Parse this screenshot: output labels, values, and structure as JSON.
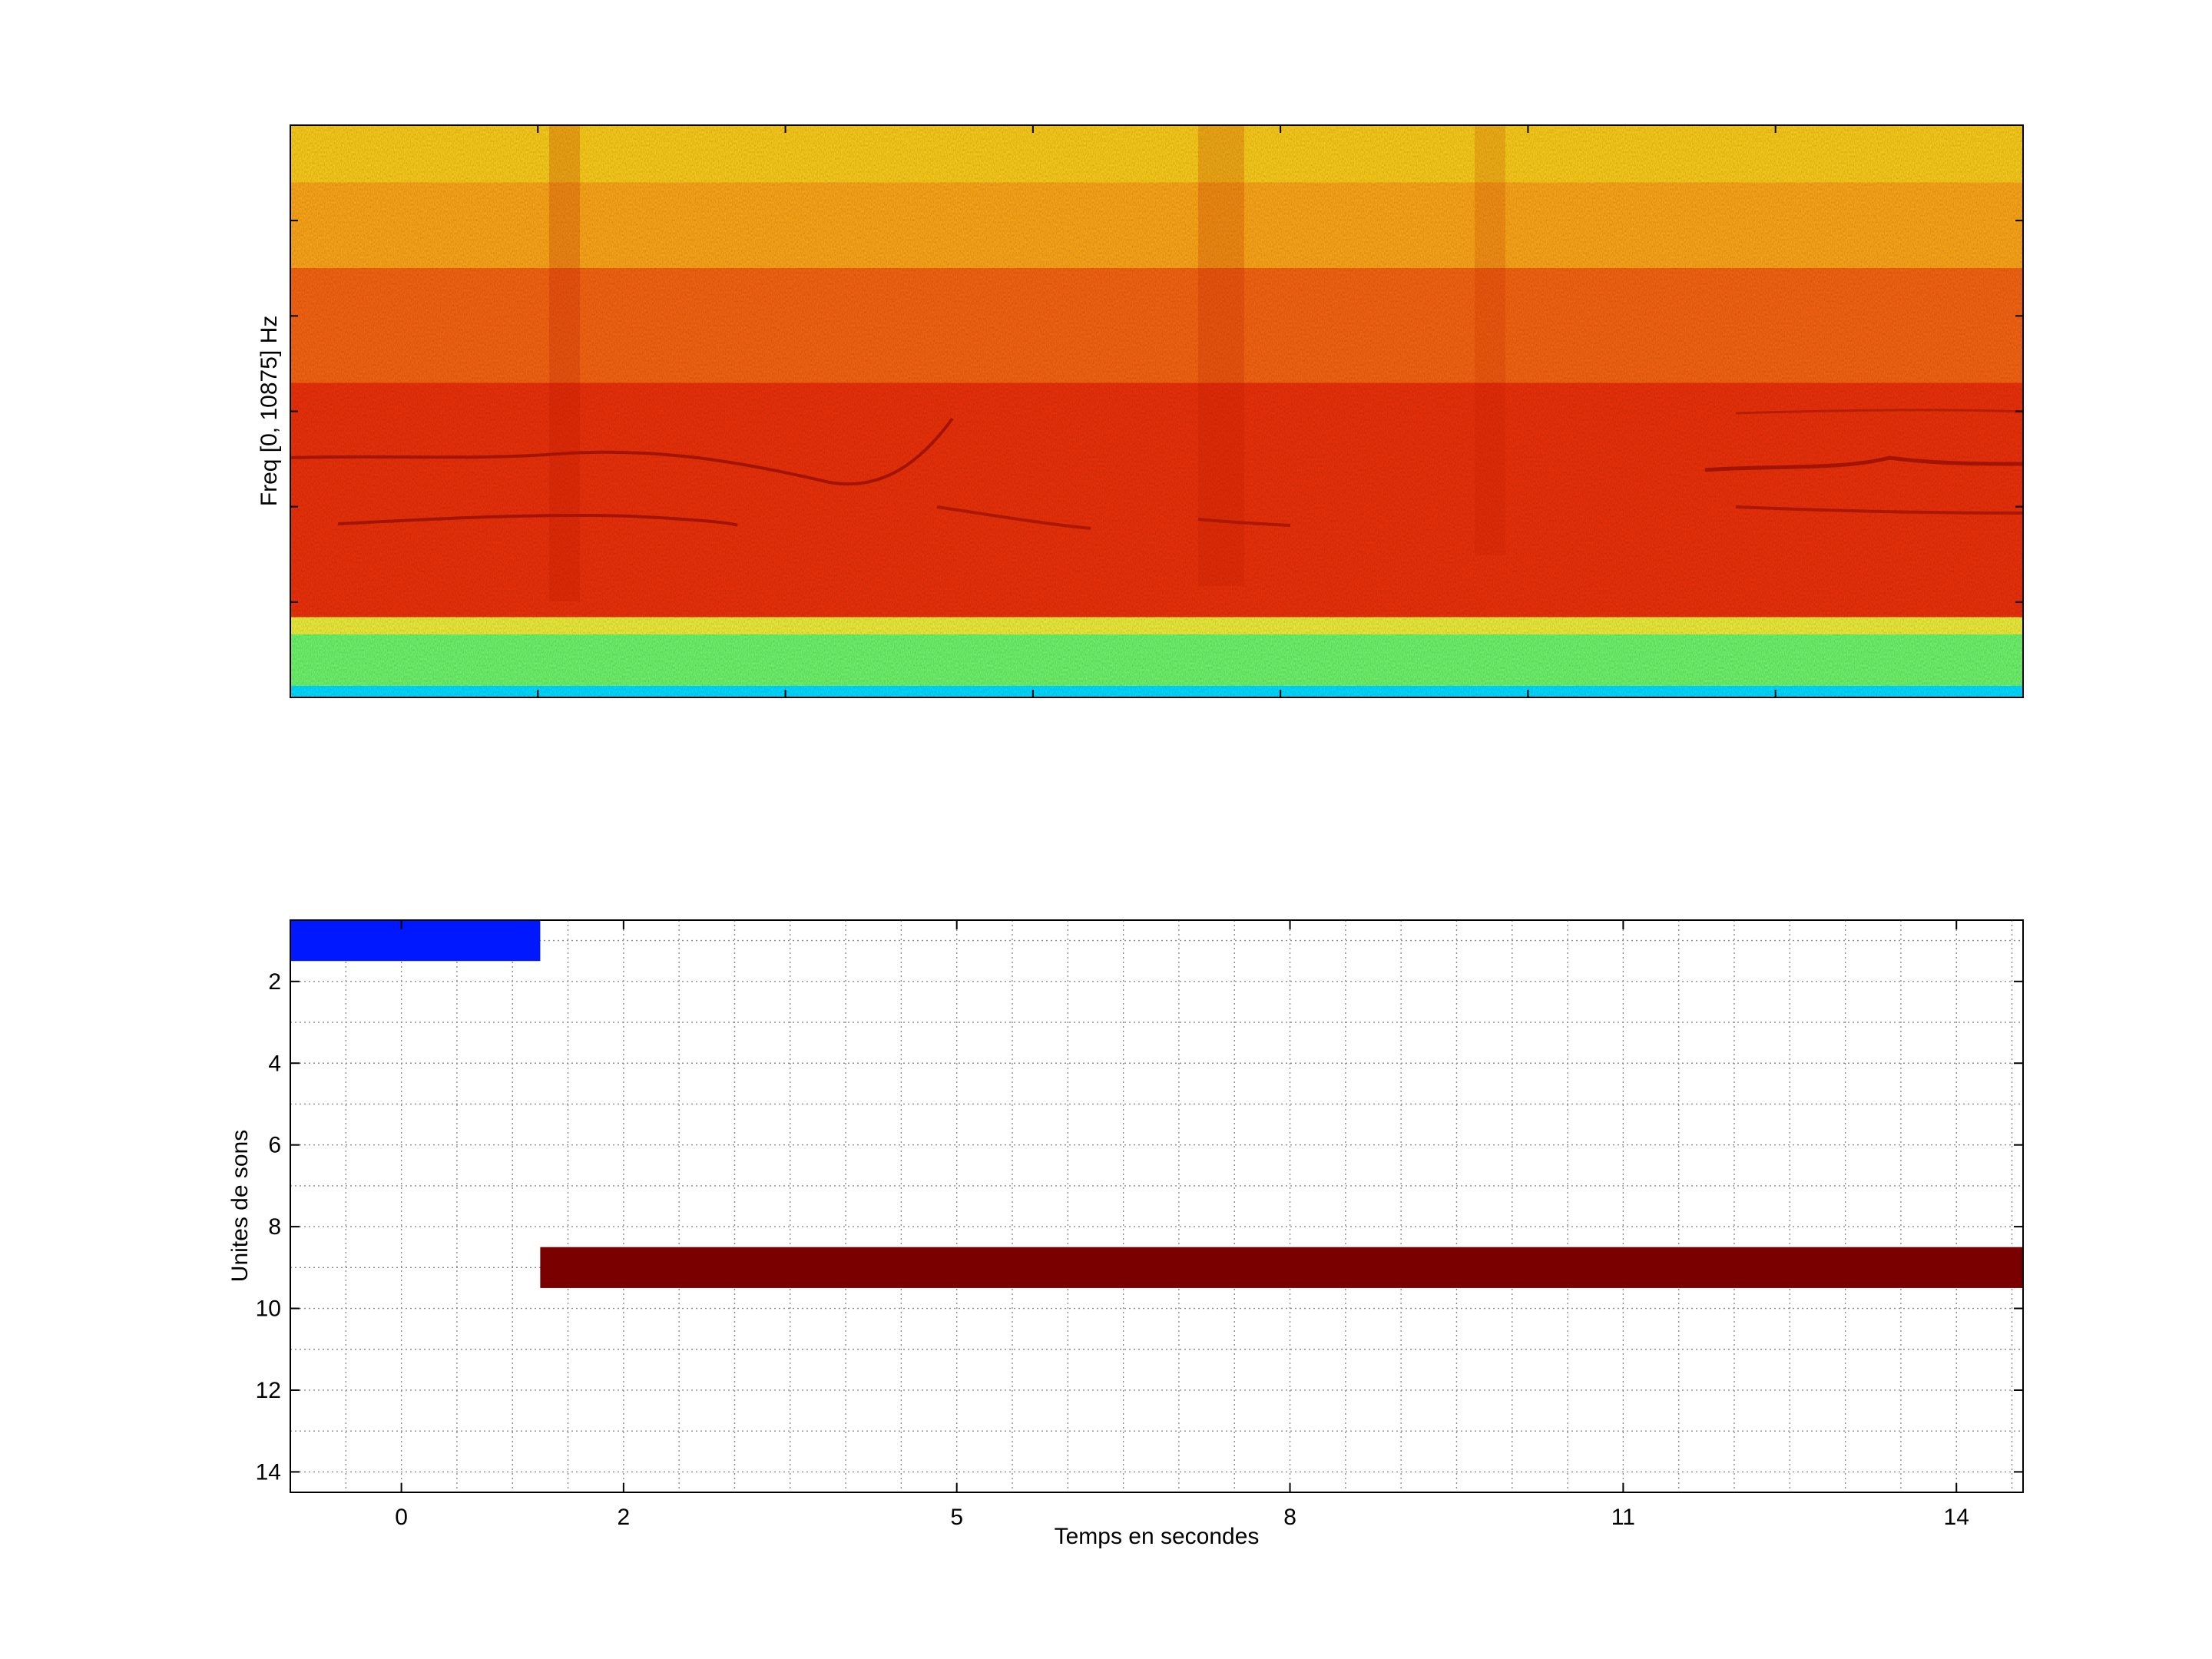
{
  "chart_data": [
    {
      "type": "heatmap",
      "title": "",
      "xlabel": "",
      "ylabel": "Freq [0, 10875] Hz",
      "ylim": [
        0,
        10875
      ],
      "colormap": "jet",
      "bands": [
        {
          "from": 0,
          "to": 0.02,
          "color": "#00d8ff"
        },
        {
          "from": 0.02,
          "to": 0.11,
          "color": "#6cf06a"
        },
        {
          "from": 0.11,
          "to": 0.14,
          "color": "#e8e83a"
        },
        {
          "from": 0.14,
          "to": 0.55,
          "color": "#e8300a"
        },
        {
          "from": 0.55,
          "to": 0.75,
          "color": "#f26212"
        },
        {
          "from": 0.75,
          "to": 0.9,
          "color": "#f8a318"
        },
        {
          "from": 0.9,
          "to": 1.0,
          "color": "#f6c81a"
        }
      ]
    },
    {
      "type": "bar",
      "title": "",
      "xlabel": "Temps en secondes",
      "ylabel": "Unites de sons",
      "xlim": [
        -1,
        14.6
      ],
      "ylim": [
        0.5,
        14.5
      ],
      "y_reversed": true,
      "grid": true,
      "x_ticks": [
        0,
        2,
        5,
        8,
        11,
        14
      ],
      "x_tick_labels": [
        "0",
        "2",
        "5",
        "8",
        "11",
        "14"
      ],
      "y_ticks": [
        2,
        4,
        6,
        8,
        10,
        12,
        14
      ],
      "y_tick_labels": [
        "2",
        "4",
        "6",
        "8",
        "10",
        "12",
        "14"
      ],
      "segments": [
        {
          "unit": 1,
          "start": -1,
          "end": 1.25,
          "color": "#0018ff"
        },
        {
          "unit": 9,
          "start": 1.25,
          "end": 14.6,
          "color": "#7a0000"
        }
      ]
    }
  ]
}
